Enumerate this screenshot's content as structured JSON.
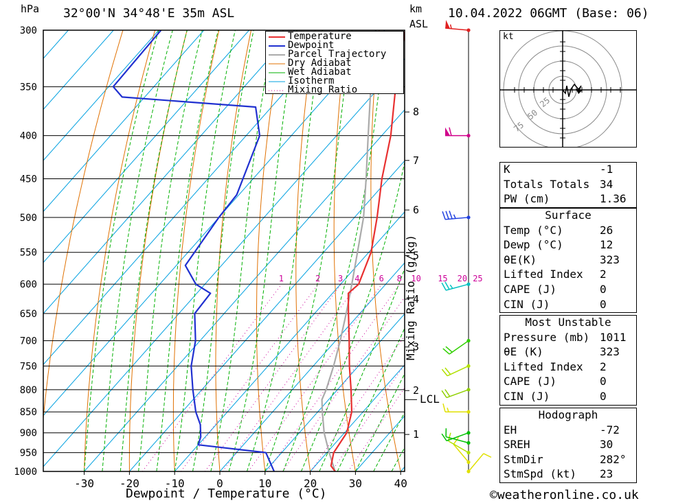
{
  "header": {
    "location": "32°00'N 34°48'E 35m ASL",
    "datetime": "10.04.2022 06GMT (Base: 06)",
    "pressure_unit": "hPa",
    "height_unit": "km",
    "height_ref": "ASL"
  },
  "chart_data": {
    "type": "skew-t",
    "xlabel": "Dewpoint / Temperature (°C)",
    "x_ticks": [
      -30,
      -20,
      -10,
      0,
      10,
      20,
      30,
      40
    ],
    "xlim": [
      -40,
      40
    ],
    "pressure_levels": [
      300,
      350,
      400,
      450,
      500,
      550,
      600,
      650,
      700,
      750,
      800,
      850,
      900,
      950,
      1000
    ],
    "ylim": [
      1000,
      300
    ],
    "y_scale": "log",
    "height_ticks_km": [
      {
        "label": "8",
        "p": 375
      },
      {
        "label": "7",
        "p": 428
      },
      {
        "label": "6",
        "p": 490
      },
      {
        "label": "5",
        "p": 555
      },
      {
        "label": "4",
        "p": 625
      },
      {
        "label": "3",
        "p": 712
      },
      {
        "label": "2",
        "p": 802
      },
      {
        "label": "1",
        "p": 904
      }
    ],
    "lcl_label": "LCL",
    "lcl_pressure": 822,
    "mixing_ratio_label": "Mixing Ratio (g/kg)",
    "mixing_ratio_values": [
      "1",
      "2",
      "3",
      "4",
      "6",
      "8",
      "10",
      "15",
      "20",
      "25"
    ],
    "legend": [
      "Temperature",
      "Dewpoint",
      "Parcel Trajectory",
      "Dry Adiabat",
      "Wet Adiabat",
      "Isotherm",
      "Mixing Ratio"
    ],
    "colors": {
      "temperature": "#e83030",
      "dewpoint": "#2030d0",
      "parcel": "#aaaaaa",
      "dry_adiabat": "#e07000",
      "wet_adiabat": "#00b000",
      "isotherm": "#00a0e0",
      "mixing_ratio": "#cc0099"
    },
    "temperature": [
      {
        "p": 1000,
        "t": 25.5
      },
      {
        "p": 985,
        "t": 23.5
      },
      {
        "p": 950,
        "t": 21.5
      },
      {
        "p": 900,
        "t": 20.5
      },
      {
        "p": 850,
        "t": 17.5
      },
      {
        "p": 800,
        "t": 13.0
      },
      {
        "p": 750,
        "t": 8.0
      },
      {
        "p": 700,
        "t": 3.0
      },
      {
        "p": 650,
        "t": -2.5
      },
      {
        "p": 615,
        "t": -6.5
      },
      {
        "p": 600,
        "t": -6.0
      },
      {
        "p": 550,
        "t": -9.5
      },
      {
        "p": 500,
        "t": -15.0
      },
      {
        "p": 450,
        "t": -21.5
      },
      {
        "p": 400,
        "t": -28.0
      },
      {
        "p": 350,
        "t": -36.5
      },
      {
        "p": 300,
        "t": -45.5
      }
    ],
    "dewpoint": [
      {
        "p": 1000,
        "t": 12.0
      },
      {
        "p": 950,
        "t": 6.5
      },
      {
        "p": 930,
        "t": -10.0
      },
      {
        "p": 910,
        "t": -11.0
      },
      {
        "p": 880,
        "t": -13.5
      },
      {
        "p": 850,
        "t": -17.0
      },
      {
        "p": 800,
        "t": -22.0
      },
      {
        "p": 750,
        "t": -27.0
      },
      {
        "p": 700,
        "t": -31.0
      },
      {
        "p": 650,
        "t": -36.5
      },
      {
        "p": 615,
        "t": -37.0
      },
      {
        "p": 600,
        "t": -42.0
      },
      {
        "p": 570,
        "t": -48.0
      },
      {
        "p": 500,
        "t": -50.0
      },
      {
        "p": 470,
        "t": -50.5
      },
      {
        "p": 400,
        "t": -57.0
      },
      {
        "p": 370,
        "t": -63.5
      },
      {
        "p": 360,
        "t": -95.0
      },
      {
        "p": 350,
        "t": -99.0
      },
      {
        "p": 300,
        "t": -99.5
      }
    ],
    "parcel": [
      {
        "p": 1000,
        "t": 25.5
      },
      {
        "p": 950,
        "t": 20.5
      },
      {
        "p": 900,
        "t": 15.5
      },
      {
        "p": 850,
        "t": 11.0
      },
      {
        "p": 822,
        "t": 8.5
      },
      {
        "p": 800,
        "t": 7.5
      },
      {
        "p": 750,
        "t": 4.5
      },
      {
        "p": 700,
        "t": 1.0
      },
      {
        "p": 650,
        "t": -3.0
      },
      {
        "p": 600,
        "t": -7.5
      },
      {
        "p": 550,
        "t": -12.5
      },
      {
        "p": 500,
        "t": -18.0
      },
      {
        "p": 450,
        "t": -25.0
      },
      {
        "p": 400,
        "t": -33.0
      },
      {
        "p": 350,
        "t": -42.0
      },
      {
        "p": 300,
        "t": -52.0
      }
    ],
    "wind_barbs": [
      {
        "p": 1000,
        "dir": 40,
        "kt": 10,
        "color": "#e0e000"
      },
      {
        "p": 975,
        "dir": 320,
        "kt": 10,
        "color": "#e0e000"
      },
      {
        "p": 950,
        "dir": 300,
        "kt": 10,
        "color": "#b0e000"
      },
      {
        "p": 925,
        "dir": 285,
        "kt": 10,
        "color": "#00c000"
      },
      {
        "p": 900,
        "dir": 250,
        "kt": 10,
        "color": "#00c000"
      },
      {
        "p": 850,
        "dir": 270,
        "kt": 15,
        "color": "#e0e000"
      },
      {
        "p": 800,
        "dir": 250,
        "kt": 20,
        "color": "#90d000"
      },
      {
        "p": 750,
        "dir": 245,
        "kt": 20,
        "color": "#b0e000"
      },
      {
        "p": 700,
        "dir": 235,
        "kt": 20,
        "color": "#30d000"
      },
      {
        "p": 600,
        "dir": 255,
        "kt": 25,
        "color": "#00c0c0"
      },
      {
        "p": 500,
        "dir": 265,
        "kt": 35,
        "color": "#2040e0"
      },
      {
        "p": 400,
        "dir": 270,
        "kt": 60,
        "color": "#d0008a"
      },
      {
        "p": 300,
        "dir": 275,
        "kt": 55,
        "color": "#e02020"
      }
    ]
  },
  "hodograph": {
    "unit": "kt",
    "ring_labels": [
      "25",
      "50",
      "75"
    ]
  },
  "indices": {
    "rows": [
      {
        "label": "K",
        "value": "-1"
      },
      {
        "label": "Totals Totals",
        "value": "34"
      },
      {
        "label": "PW (cm)",
        "value": "1.36"
      }
    ]
  },
  "surface": {
    "title": "Surface",
    "rows": [
      {
        "label": "Temp (°C)",
        "value": "26"
      },
      {
        "label": "Dewp (°C)",
        "value": "12"
      },
      {
        "label": "θE(K)",
        "value": "323"
      },
      {
        "label": "Lifted Index",
        "value": "2"
      },
      {
        "label": "CAPE (J)",
        "value": "0"
      },
      {
        "label": "CIN (J)",
        "value": "0"
      }
    ]
  },
  "most_unstable": {
    "title": "Most Unstable",
    "rows": [
      {
        "label": "Pressure (mb)",
        "value": "1011"
      },
      {
        "label": "θE (K)",
        "value": "323"
      },
      {
        "label": "Lifted Index",
        "value": "2"
      },
      {
        "label": "CAPE (J)",
        "value": "0"
      },
      {
        "label": "CIN (J)",
        "value": "0"
      }
    ]
  },
  "hodograph_stats": {
    "title": "Hodograph",
    "rows": [
      {
        "label": "EH",
        "value": "-72"
      },
      {
        "label": "SREH",
        "value": "30"
      },
      {
        "label": "StmDir",
        "value": "282°"
      },
      {
        "label": "StmSpd (kt)",
        "value": "23"
      }
    ]
  },
  "footer": "©weatheronline.co.uk"
}
